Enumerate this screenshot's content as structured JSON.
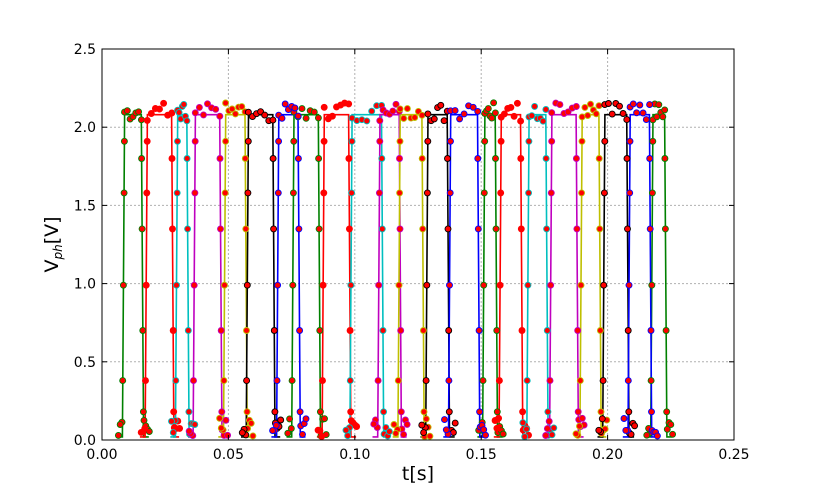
{
  "chart_data": {
    "type": "line",
    "title": "",
    "xlabel": "t[s]",
    "ylabel_main": "V",
    "ylabel_sub": "ph",
    "ylabel_unit": "[V]",
    "xlim": [
      0.0,
      0.25
    ],
    "ylim": [
      0.0,
      2.5
    ],
    "xticks": [
      0.0,
      0.05,
      0.1,
      0.15,
      0.2,
      0.25
    ],
    "xtick_labels": [
      "0.00",
      "0.05",
      "0.10",
      "0.15",
      "0.20",
      "0.25"
    ],
    "yticks": [
      0.0,
      0.5,
      1.0,
      1.5,
      2.0,
      2.5
    ],
    "ytick_labels": [
      "0.0",
      "0.5",
      "1.0",
      "1.5",
      "2.0",
      "2.5"
    ],
    "grid": true,
    "legend": "none",
    "low_level": 0.02,
    "high_level": 2.08,
    "marker_color": "#ff0000",
    "series": [
      {
        "color": "#008000",
        "pulses": [
          [
            0.0085,
            0.016
          ],
          [
            0.0755,
            0.086
          ],
          [
            0.151,
            0.156
          ],
          [
            0.2175,
            0.223
          ]
        ]
      },
      {
        "color": "#ff0000",
        "pulses": [
          [
            0.0175,
            0.028
          ],
          [
            0.0875,
            0.098
          ],
          [
            0.1575,
            0.166
          ]
        ]
      },
      {
        "color": "#00bfbf",
        "pulses": [
          [
            0.0295,
            0.034
          ],
          [
            0.0985,
            0.111
          ],
          [
            0.1685,
            0.176
          ]
        ]
      },
      {
        "color": "#bf00bf",
        "pulses": [
          [
            0.0365,
            0.047
          ],
          [
            0.1095,
            0.118
          ],
          [
            0.1775,
            0.188
          ]
        ]
      },
      {
        "color": "#bfbf00",
        "pulses": [
          [
            0.0485,
            0.057
          ],
          [
            0.1175,
            0.127
          ],
          [
            0.1895,
            0.197
          ]
        ]
      },
      {
        "color": "#000000",
        "pulses": [
          [
            0.0575,
            0.068
          ],
          [
            0.1285,
            0.137
          ],
          [
            0.1985,
            0.208
          ]
        ]
      },
      {
        "color": "#0000ff",
        "pulses": [
          [
            0.0695,
            0.078
          ],
          [
            0.1375,
            0.149
          ],
          [
            0.2085,
            0.217
          ]
        ]
      }
    ]
  }
}
